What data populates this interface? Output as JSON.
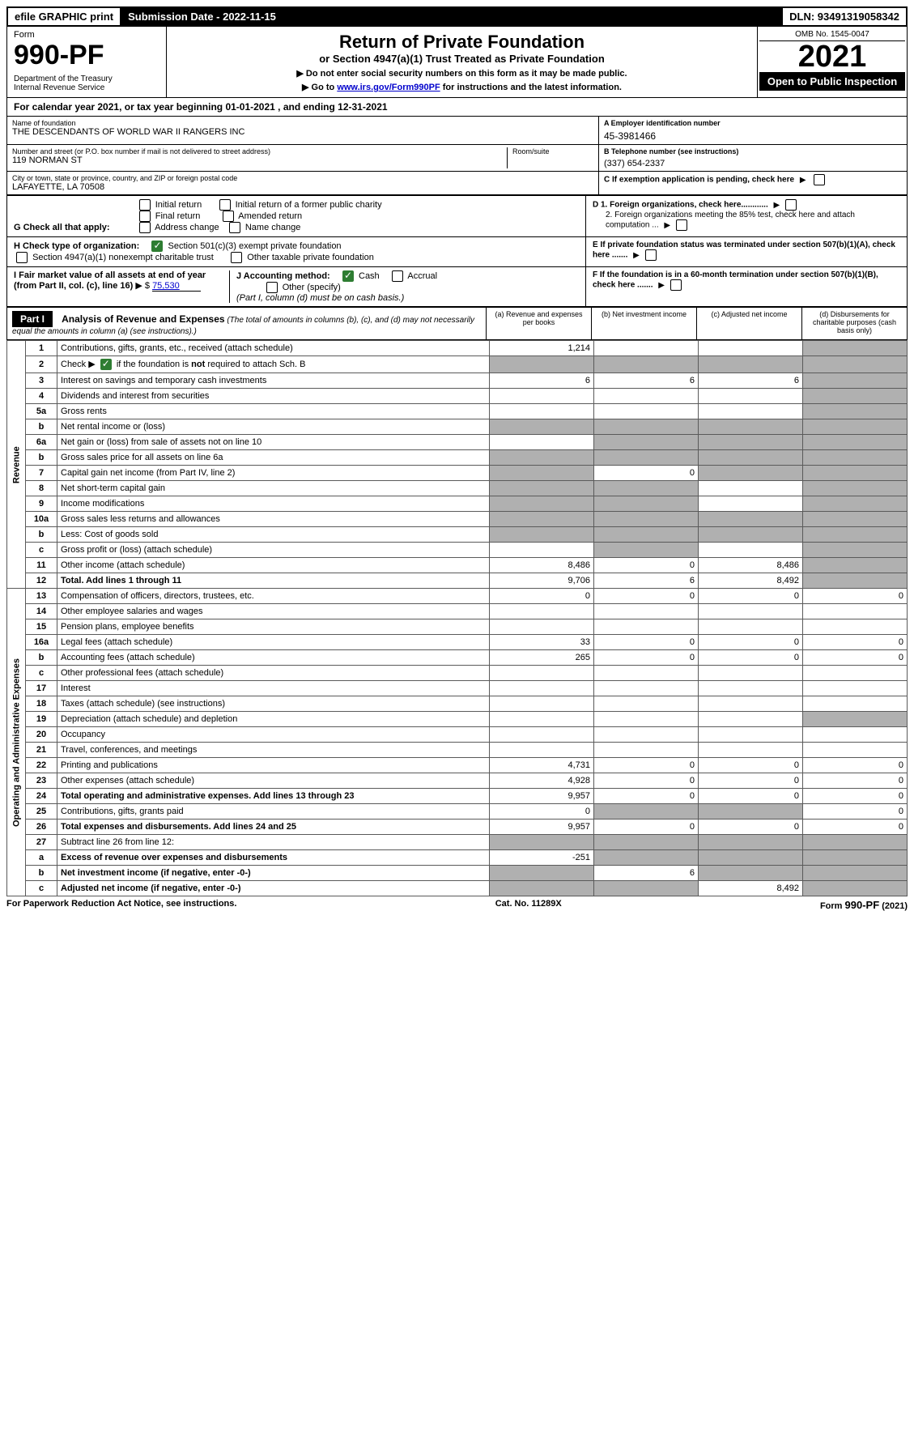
{
  "topbar": {
    "efile": "efile GRAPHIC print",
    "submission": "Submission Date - 2022-11-15",
    "dln": "DLN: 93491319058342"
  },
  "header": {
    "form_label": "Form",
    "form_number": "990-PF",
    "dept": "Department of the Treasury\nInternal Revenue Service",
    "title": "Return of Private Foundation",
    "subtitle": "or Section 4947(a)(1) Trust Treated as Private Foundation",
    "note1": "▶ Do not enter social security numbers on this form as it may be made public.",
    "note2_pre": "▶ Go to ",
    "note2_link": "www.irs.gov/Form990PF",
    "note2_post": " for instructions and the latest information.",
    "omb": "OMB No. 1545-0047",
    "year": "2021",
    "inspect": "Open to Public Inspection"
  },
  "calendar": "For calendar year 2021, or tax year beginning 01-01-2021                                           , and ending 12-31-2021",
  "info": {
    "name_label": "Name of foundation",
    "name": "THE DESCENDANTS OF WORLD WAR II RANGERS INC",
    "ein_label": "A Employer identification number",
    "ein": "45-3981466",
    "addr_label": "Number and street (or P.O. box number if mail is not delivered to street address)",
    "addr": "119 NORMAN ST",
    "room_label": "Room/suite",
    "phone_label": "B Telephone number (see instructions)",
    "phone": "(337) 654-2337",
    "city_label": "City or town, state or province, country, and ZIP or foreign postal code",
    "city": "LAFAYETTE, LA  70508",
    "c_label": "C If exemption application is pending, check here"
  },
  "g": {
    "label": "G Check all that apply:",
    "opts": [
      "Initial return",
      "Final return",
      "Address change",
      "Initial return of a former public charity",
      "Amended return",
      "Name change"
    ]
  },
  "d": {
    "d1": "D 1. Foreign organizations, check here............",
    "d2": "2. Foreign organizations meeting the 85% test, check here and attach computation ...",
    "e": "E  If private foundation status was terminated under section 507(b)(1)(A), check here .......",
    "f": "F  If the foundation is in a 60-month termination under section 507(b)(1)(B), check here ......."
  },
  "h": {
    "label": "H Check type of organization:",
    "opt1": "Section 501(c)(3) exempt private foundation",
    "opt2": "Section 4947(a)(1) nonexempt charitable trust",
    "opt3": "Other taxable private foundation"
  },
  "i": {
    "label": "I Fair market value of all assets at end of year (from Part II, col. (c), line 16)",
    "val": "75,530"
  },
  "j": {
    "label": "J Accounting method:",
    "cash": "Cash",
    "accrual": "Accrual",
    "other": "Other (specify)",
    "note": "(Part I, column (d) must be on cash basis.)"
  },
  "part1": {
    "label": "Part I",
    "title": "Analysis of Revenue and Expenses",
    "sub": " (The total of amounts in columns (b), (c), and (d) may not necessarily equal the amounts in column (a) (see instructions).)",
    "col_a": "(a)   Revenue and expenses per books",
    "col_b": "(b)   Net investment income",
    "col_c": "(c)   Adjusted net income",
    "col_d": "(d)  Disbursements for charitable purposes (cash basis only)"
  },
  "sections": {
    "revenue": "Revenue",
    "expenses": "Operating and Administrative Expenses"
  },
  "lines": [
    {
      "n": "1",
      "label": "Contributions, gifts, grants, etc., received (attach schedule)",
      "a": "1,214",
      "b": "",
      "c": "",
      "d": "shade"
    },
    {
      "n": "2",
      "label": "Check ▶ ☑ if the foundation is not required to attach Sch. B",
      "a": "shade",
      "b": "shade",
      "c": "shade",
      "d": "shade",
      "checked": true
    },
    {
      "n": "3",
      "label": "Interest on savings and temporary cash investments",
      "a": "6",
      "b": "6",
      "c": "6",
      "d": "shade"
    },
    {
      "n": "4",
      "label": "Dividends and interest from securities",
      "a": "",
      "b": "",
      "c": "",
      "d": "shade"
    },
    {
      "n": "5a",
      "label": "Gross rents",
      "a": "",
      "b": "",
      "c": "",
      "d": "shade"
    },
    {
      "n": "b",
      "label": "Net rental income or (loss)",
      "a": "shade-split",
      "b": "shade",
      "c": "shade",
      "d": "shade"
    },
    {
      "n": "6a",
      "label": "Net gain or (loss) from sale of assets not on line 10",
      "a": "",
      "b": "shade",
      "c": "shade",
      "d": "shade"
    },
    {
      "n": "b",
      "label": "Gross sales price for all assets on line 6a",
      "a": "shade-split",
      "b": "shade",
      "c": "shade",
      "d": "shade"
    },
    {
      "n": "7",
      "label": "Capital gain net income (from Part IV, line 2)",
      "a": "shade",
      "b": "0",
      "c": "shade",
      "d": "shade"
    },
    {
      "n": "8",
      "label": "Net short-term capital gain",
      "a": "shade",
      "b": "shade",
      "c": "",
      "d": "shade"
    },
    {
      "n": "9",
      "label": "Income modifications",
      "a": "shade",
      "b": "shade",
      "c": "",
      "d": "shade"
    },
    {
      "n": "10a",
      "label": "Gross sales less returns and allowances",
      "a": "shade-split",
      "b": "shade",
      "c": "shade",
      "d": "shade"
    },
    {
      "n": "b",
      "label": "Less: Cost of goods sold",
      "a": "shade-split",
      "b": "shade",
      "c": "shade",
      "d": "shade"
    },
    {
      "n": "c",
      "label": "Gross profit or (loss) (attach schedule)",
      "a": "",
      "b": "shade",
      "c": "",
      "d": "shade"
    },
    {
      "n": "11",
      "label": "Other income (attach schedule)",
      "a": "8,486",
      "b": "0",
      "c": "8,486",
      "d": "shade"
    },
    {
      "n": "12",
      "label": "Total. Add lines 1 through 11",
      "a": "9,706",
      "b": "6",
      "c": "8,492",
      "d": "shade",
      "bold": true
    }
  ],
  "exp_lines": [
    {
      "n": "13",
      "label": "Compensation of officers, directors, trustees, etc.",
      "a": "0",
      "b": "0",
      "c": "0",
      "d": "0"
    },
    {
      "n": "14",
      "label": "Other employee salaries and wages",
      "a": "",
      "b": "",
      "c": "",
      "d": ""
    },
    {
      "n": "15",
      "label": "Pension plans, employee benefits",
      "a": "",
      "b": "",
      "c": "",
      "d": ""
    },
    {
      "n": "16a",
      "label": "Legal fees (attach schedule)",
      "a": "33",
      "b": "0",
      "c": "0",
      "d": "0"
    },
    {
      "n": "b",
      "label": "Accounting fees (attach schedule)",
      "a": "265",
      "b": "0",
      "c": "0",
      "d": "0"
    },
    {
      "n": "c",
      "label": "Other professional fees (attach schedule)",
      "a": "",
      "b": "",
      "c": "",
      "d": ""
    },
    {
      "n": "17",
      "label": "Interest",
      "a": "",
      "b": "",
      "c": "",
      "d": ""
    },
    {
      "n": "18",
      "label": "Taxes (attach schedule) (see instructions)",
      "a": "",
      "b": "",
      "c": "",
      "d": ""
    },
    {
      "n": "19",
      "label": "Depreciation (attach schedule) and depletion",
      "a": "",
      "b": "",
      "c": "",
      "d": "shade"
    },
    {
      "n": "20",
      "label": "Occupancy",
      "a": "",
      "b": "",
      "c": "",
      "d": ""
    },
    {
      "n": "21",
      "label": "Travel, conferences, and meetings",
      "a": "",
      "b": "",
      "c": "",
      "d": ""
    },
    {
      "n": "22",
      "label": "Printing and publications",
      "a": "4,731",
      "b": "0",
      "c": "0",
      "d": "0"
    },
    {
      "n": "23",
      "label": "Other expenses (attach schedule)",
      "a": "4,928",
      "b": "0",
      "c": "0",
      "d": "0"
    },
    {
      "n": "24",
      "label": "Total operating and administrative expenses. Add lines 13 through 23",
      "a": "9,957",
      "b": "0",
      "c": "0",
      "d": "0",
      "bold": true
    },
    {
      "n": "25",
      "label": "Contributions, gifts, grants paid",
      "a": "0",
      "b": "shade",
      "c": "shade",
      "d": "0"
    },
    {
      "n": "26",
      "label": "Total expenses and disbursements. Add lines 24 and 25",
      "a": "9,957",
      "b": "0",
      "c": "0",
      "d": "0",
      "bold": true
    },
    {
      "n": "27",
      "label": "Subtract line 26 from line 12:",
      "a": "shade",
      "b": "shade",
      "c": "shade",
      "d": "shade"
    },
    {
      "n": "a",
      "label": "Excess of revenue over expenses and disbursements",
      "a": "-251",
      "b": "shade",
      "c": "shade",
      "d": "shade",
      "bold": true
    },
    {
      "n": "b",
      "label": "Net investment income (if negative, enter -0-)",
      "a": "shade",
      "b": "6",
      "c": "shade",
      "d": "shade",
      "bold": true
    },
    {
      "n": "c",
      "label": "Adjusted net income (if negative, enter -0-)",
      "a": "shade",
      "b": "shade",
      "c": "8,492",
      "d": "shade",
      "bold": true
    }
  ],
  "footer": {
    "left": "For Paperwork Reduction Act Notice, see instructions.",
    "mid": "Cat. No. 11289X",
    "right": "Form 990-PF (2021)"
  }
}
